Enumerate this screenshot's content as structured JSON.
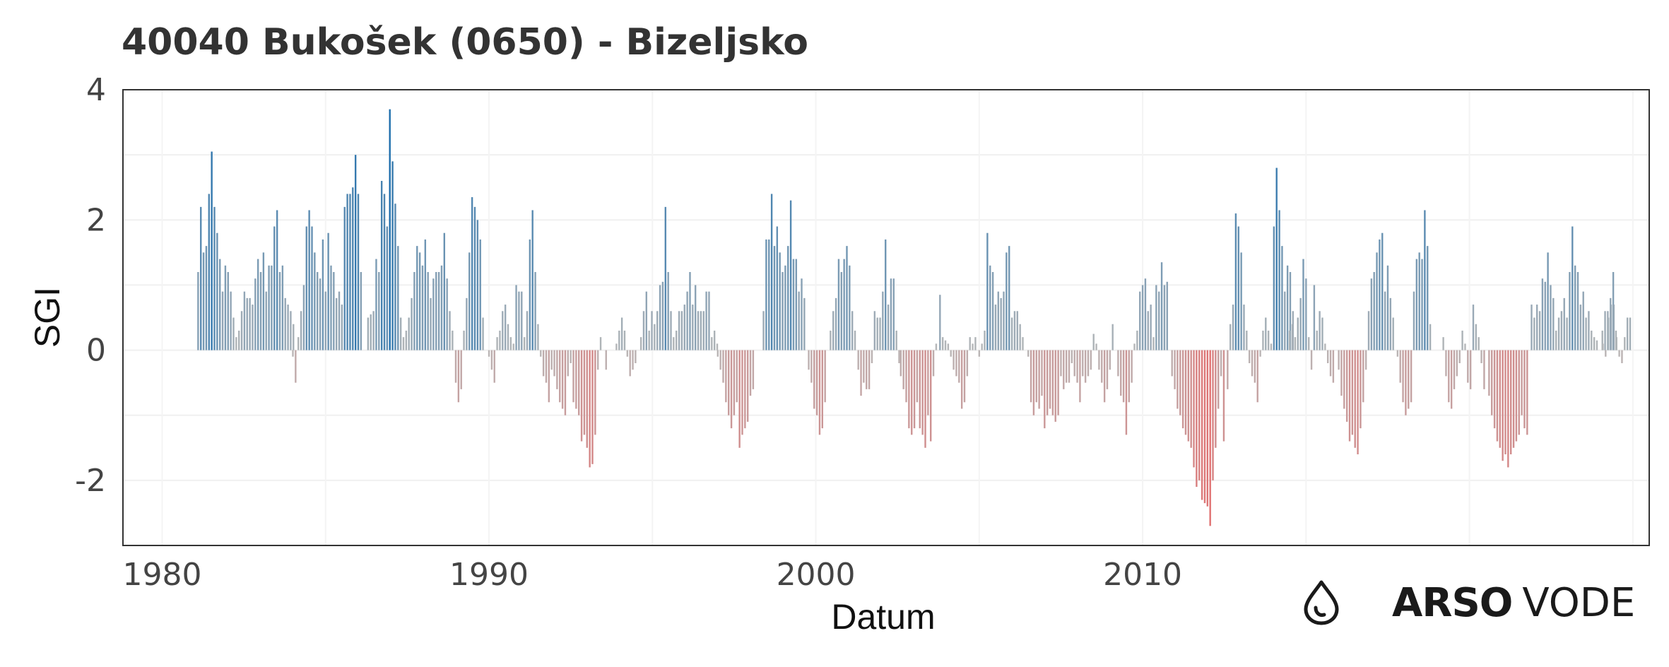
{
  "title": "40040 Bukošek (0650) - Bizeljsko",
  "brand": {
    "name_bold": "ARSO",
    "name_light": "VODE",
    "icon": "water-drop-icon"
  },
  "chart_data": {
    "type": "bar",
    "xlabel": "Datum",
    "ylabel": "SGI",
    "xlim": [
      1978.8,
      2025.5
    ],
    "ylim": [
      -3.0,
      4.0
    ],
    "x_ticks": [
      1980,
      1990,
      2000,
      2010
    ],
    "x_tick_labels": [
      "1980",
      "1990",
      "2000",
      "2010"
    ],
    "y_ticks": [
      -2,
      0,
      2,
      4
    ],
    "y_tick_labels": [
      "-2",
      "0",
      "2",
      "4"
    ],
    "grid": true,
    "color_scale": {
      "positive": "#1f6fad",
      "neutral": "#b8b8b8",
      "negative": "#e07070"
    },
    "monthly_step": 0.08333,
    "segments": [
      {
        "start": 1981.1,
        "values": [
          1.2,
          2.2,
          1.5,
          1.6,
          2.4,
          3.05,
          2.2,
          1.8,
          1.4,
          0.9,
          1.3,
          1.2,
          0.9,
          0.5,
          0.2,
          0.3,
          0.6,
          0.9,
          0.8,
          0.8,
          0.7,
          1.1,
          1.4,
          1.2,
          1.5,
          0.9,
          1.3,
          1.3,
          1.9,
          2.15,
          1.2,
          1.3,
          0.8,
          0.7,
          0.6,
          0.4
        ]
      },
      {
        "start": 1984.0,
        "values": [
          -0.1,
          -0.5,
          0.2,
          0.6,
          1.0,
          1.9,
          2.15,
          1.9,
          1.5,
          1.2,
          1.1,
          1.7,
          0.9,
          1.8,
          1.3,
          1.2,
          0.8,
          0.9,
          0.7,
          2.2,
          2.4,
          2.4,
          2.5,
          3.0,
          2.4,
          1.2
        ]
      },
      {
        "start": 1986.3,
        "values": [
          0.5,
          0.55,
          0.6,
          1.4,
          1.2,
          2.6,
          2.4,
          1.9,
          3.7,
          2.9,
          2.25,
          1.6,
          0.5,
          0.2,
          0.3,
          0.5,
          0.8,
          1.2,
          1.6,
          1.5,
          1.3,
          1.7,
          1.2,
          0.8,
          1.1,
          1.2,
          1.2,
          1.3,
          1.8,
          1.1,
          0.6,
          0.3
        ]
      },
      {
        "start": 1988.9,
        "values": [
          0.0,
          -0.5,
          -0.8,
          -0.6,
          0.3,
          0.8,
          1.5,
          2.35,
          2.2,
          2.0,
          1.7,
          0.5
        ]
      },
      {
        "start": 1990.0,
        "values": [
          -0.1,
          -0.3,
          -0.5,
          0.2,
          0.3,
          0.6,
          0.7,
          0.4,
          0.2,
          0.1,
          1.0,
          0.9,
          0.9,
          0.2,
          0.6,
          1.7,
          2.15,
          1.2
        ]
      },
      {
        "start": 1991.5,
        "values": [
          0.4,
          -0.1,
          -0.4,
          -0.5,
          -0.8,
          -0.3,
          -0.4,
          -0.6,
          -0.8,
          -0.9,
          -1.0,
          -0.4,
          -0.2,
          -0.8,
          -0.9,
          -1.0,
          -1.4,
          -1.3,
          -1.5,
          -1.8,
          -1.75,
          -1.3,
          -0.3,
          0.2,
          0.0,
          -0.3
        ]
      },
      {
        "start": 1993.9,
        "values": [
          0.1,
          0.3,
          0.5,
          0.3,
          -0.1,
          -0.4,
          -0.3,
          -0.2,
          0.0,
          0.2,
          0.6,
          0.9,
          0.3,
          0.6,
          0.4,
          0.6,
          1.0,
          1.05,
          2.2,
          1.2,
          0.6,
          0.2,
          0.3,
          0.6,
          0.6,
          0.7,
          0.9,
          1.2,
          0.7,
          1.0,
          0.6,
          0.6,
          0.6,
          0.9,
          0.9,
          0.2,
          0.3,
          0.1
        ]
      },
      {
        "start": 1997.0,
        "values": [
          -0.1,
          -0.3,
          -0.5,
          -0.8,
          -1.0,
          -1.2,
          -1.0,
          -0.8,
          -1.5,
          -1.3,
          -1.2,
          -1.1,
          -0.7,
          -0.6
        ]
      },
      {
        "start": 1998.4,
        "values": [
          0.6,
          1.7,
          1.7,
          2.4,
          1.6,
          1.9,
          1.5,
          1.2,
          1.3,
          1.6,
          2.3,
          1.4,
          1.4,
          0.9,
          1.1,
          0.8
        ]
      },
      {
        "start": 1999.7,
        "values": [
          0.0,
          -0.3,
          -0.5,
          -0.9,
          -1.0,
          -1.3,
          -1.2,
          -0.8,
          0.0,
          0.3,
          0.6,
          0.8,
          1.4,
          1.2,
          1.4,
          1.6,
          1.3,
          0.6,
          0.3
        ]
      },
      {
        "start": 2001.3,
        "values": [
          -0.3,
          -0.7,
          -0.5,
          -0.6,
          -0.6,
          -0.2,
          0.6,
          0.5,
          0.5,
          0.9,
          1.7,
          0.7,
          1.1,
          1.1,
          0.3,
          -0.2
        ]
      },
      {
        "start": 2002.6,
        "values": [
          -0.4,
          -0.6,
          -0.8,
          -1.2,
          -1.3,
          -1.2,
          -0.8,
          -1.2,
          -1.3,
          -1.5,
          -1.0,
          -1.4,
          -0.4,
          0.1
        ]
      },
      {
        "start": 2003.8,
        "values": [
          0.85,
          0.2,
          0.15,
          0.1,
          -0.1,
          -0.3,
          -0.4,
          -0.5,
          -0.9,
          -0.8,
          -0.4,
          0.2,
          0.1,
          0.2
        ]
      },
      {
        "start": 2005.0,
        "values": [
          -0.1,
          0.1,
          0.3,
          1.8,
          1.3,
          1.2,
          0.7,
          0.9,
          0.8,
          0.9,
          1.5,
          1.6,
          0.5,
          0.6,
          0.6,
          0.4,
          0.2
        ]
      },
      {
        "start": 2006.5,
        "values": [
          -0.1,
          -0.8,
          -1.0,
          -0.8,
          -0.9,
          -0.7,
          -1.2,
          -1.0,
          -0.9,
          -1.0,
          -1.1,
          -1.0,
          -0.4,
          -0.6,
          -0.5,
          -0.5,
          -0.2,
          -0.4,
          -0.5,
          -0.8,
          -0.4,
          -0.5,
          -0.4,
          -0.3
        ]
      },
      {
        "start": 2008.5,
        "values": [
          0.25,
          0.1,
          -0.3,
          -0.5,
          -0.8,
          -0.6,
          -0.3,
          0.4,
          0.0,
          -0.4,
          -0.7,
          -0.8,
          -1.3,
          -0.8,
          -0.5,
          0.1,
          0.3,
          0.9,
          1.0,
          1.1,
          0.6,
          0.7,
          0.2,
          1.0,
          0.9,
          1.35,
          1.0,
          1.05
        ]
      },
      {
        "start": 2010.9,
        "values": [
          -0.4,
          -0.6,
          -0.9,
          -1.0,
          -1.2,
          -1.3,
          -1.4,
          -1.5,
          -1.8,
          -2.1,
          -2.0,
          -2.3,
          -2.35,
          -2.4,
          -2.7,
          -2.0,
          -1.5,
          -0.9,
          -0.4,
          -1.4
        ]
      },
      {
        "start": 2012.6,
        "values": [
          -0.6,
          0.4,
          0.7,
          2.1,
          1.9,
          1.5,
          0.7,
          0.3,
          -0.2,
          -0.4,
          -0.5,
          -0.8,
          -0.1,
          0.3,
          0.5,
          0.3,
          0.1,
          1.9,
          2.8,
          2.15,
          1.6,
          0.9,
          1.3,
          1.2,
          0.6
        ]
      },
      {
        "start": 2014.5,
        "values": [
          0.3,
          0.4,
          0.2,
          0.5,
          0.8,
          1.4,
          1.1,
          0.2,
          -0.3,
          1.0,
          0.3,
          0.6,
          0.5,
          0.1,
          -0.2,
          -0.4,
          -0.5
        ]
      },
      {
        "start": 2016.0,
        "values": [
          -0.3,
          -0.7,
          -0.9,
          -1.1,
          -1.4,
          -1.3,
          -1.5,
          -1.6,
          -1.2,
          -0.8,
          -0.3,
          0.6,
          1.1,
          1.2,
          1.5,
          1.7,
          1.8,
          0.9,
          1.3,
          0.8,
          0.5
        ]
      },
      {
        "start": 2017.8,
        "values": [
          -0.1,
          -0.5,
          -0.8,
          -1.0,
          -0.9,
          -0.8,
          0.9,
          1.4,
          1.5,
          1.4,
          2.15,
          1.6,
          0.4
        ]
      },
      {
        "start": 2019.2,
        "values": [
          0.2,
          -0.4,
          -0.8,
          -0.9,
          -0.6,
          -0.4,
          -0.2,
          0.3,
          0.1,
          -0.5,
          -0.6,
          0.7,
          0.4,
          0.2,
          -0.2,
          -0.6
        ]
      },
      {
        "start": 2020.6,
        "values": [
          -0.7,
          -1.0,
          -1.2,
          -1.4,
          -1.5,
          -1.7,
          -1.6,
          -1.8,
          -1.6,
          -1.5,
          -1.4,
          -1.3,
          -1.0,
          -1.2,
          -1.3
        ]
      },
      {
        "start": 2021.9,
        "values": [
          0.7,
          0.5,
          0.7,
          0.6,
          1.1,
          1.05,
          1.5,
          1.0,
          0.8,
          0.3,
          0.5,
          0.6,
          0.8,
          0.5,
          1.2,
          1.9,
          1.3,
          1.2,
          0.7,
          0.9,
          0.5,
          0.6,
          0.3,
          0.2,
          0.15,
          0.0,
          0.3,
          0.6,
          0.6,
          0.8,
          1.2,
          0.3
        ]
      },
      {
        "start": 2024.0,
        "values": [
          0.0,
          0.1,
          -0.1,
          0.5,
          0.7,
          0.7,
          0.2,
          -0.1,
          -0.2,
          0.2,
          0.5,
          0.5
        ]
      }
    ]
  }
}
